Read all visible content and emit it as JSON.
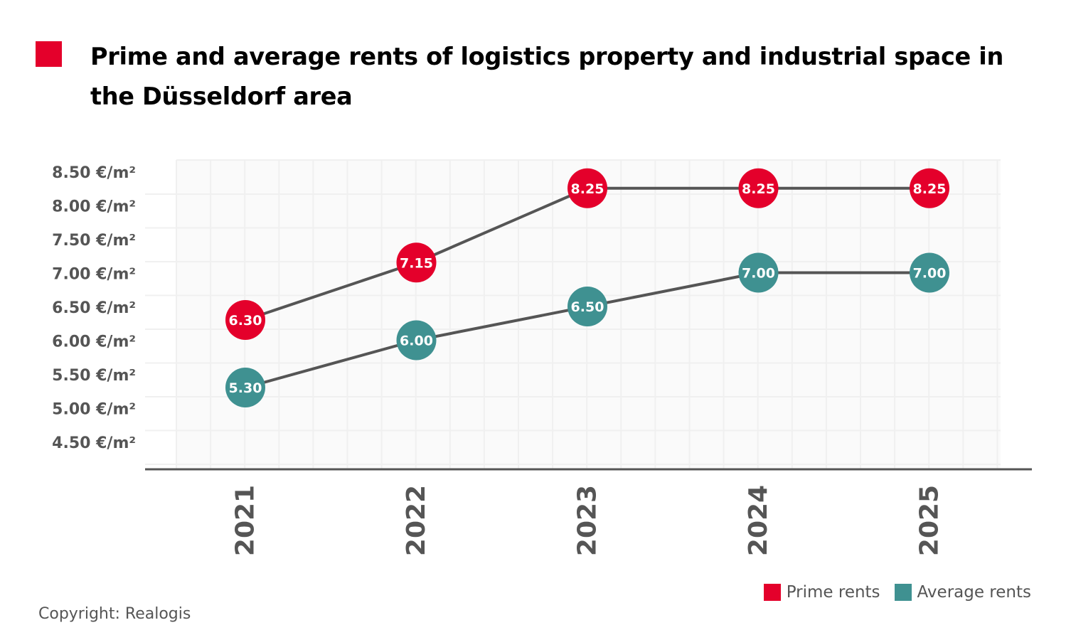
{
  "header": {
    "title": "Prime and average rents of logistics property and industrial space in the Düsseldorf area"
  },
  "colors": {
    "prime": "#e4002b",
    "average": "#3f9191",
    "line": "#555555",
    "axis_text": "#555555",
    "grid": "#f0f0f0",
    "plot_bg": "#fafafa"
  },
  "legend": {
    "items": [
      {
        "label": "Prime rents",
        "color": "#e4002b"
      },
      {
        "label": "Average rents",
        "color": "#3f9191"
      }
    ]
  },
  "footer": {
    "copyright": "Copyright: Realogis"
  },
  "chart_data": {
    "type": "line",
    "title": "Prime and average rents of logistics property and industrial space in the Düsseldorf area",
    "xlabel": "",
    "ylabel": "",
    "x": [
      "2021",
      "2022",
      "2023",
      "2024",
      "2025"
    ],
    "y_ticks": [
      8.5,
      8.0,
      7.5,
      7.0,
      6.5,
      6.0,
      5.5,
      5.0,
      4.5
    ],
    "y_tick_labels": [
      "8.50 €/m²",
      "8.00 €/m²",
      "7.50 €/m²",
      "7.00 €/m²",
      "6.50 €/m²",
      "6.00 €/m²",
      "5.50 €/m²",
      "5.00 €/m²",
      "4.50 €/m²"
    ],
    "ylim": [
      4.0,
      8.65
    ],
    "grid": true,
    "legend_position": "bottom-right",
    "series": [
      {
        "name": "Prime rents",
        "color": "#e4002b",
        "values": [
          6.3,
          7.15,
          8.25,
          8.25,
          8.25
        ],
        "labels": [
          "6.30",
          "7.15",
          "8.25",
          "8.25",
          "8.25"
        ]
      },
      {
        "name": "Average rents",
        "color": "#3f9191",
        "values": [
          5.3,
          6.0,
          6.5,
          7.0,
          7.0
        ],
        "labels": [
          "5.30",
          "6.00",
          "6.50",
          "7.00",
          "7.00"
        ]
      }
    ]
  }
}
